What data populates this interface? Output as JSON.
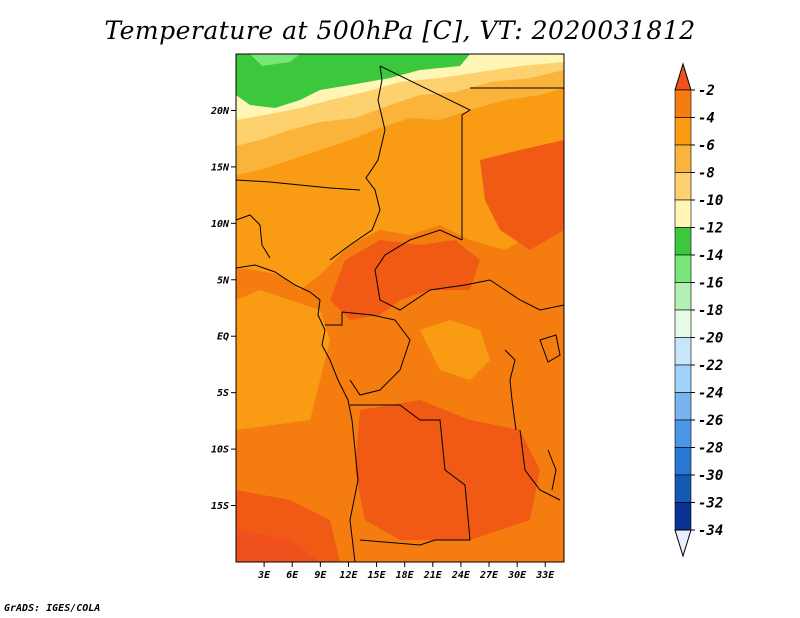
{
  "title": "Temperature at 500hPa [C], VT: 2020031812",
  "footer": "GrADS: IGES/COLA",
  "map": {
    "lon_range": [
      0,
      35
    ],
    "lat_range": [
      -20,
      25
    ],
    "lat_ticks": [
      {
        "value": 20,
        "label": "20N"
      },
      {
        "value": 15,
        "label": "15N"
      },
      {
        "value": 10,
        "label": "10N"
      },
      {
        "value": 5,
        "label": "5N"
      },
      {
        "value": 0,
        "label": "EQ"
      },
      {
        "value": -5,
        "label": "5S"
      },
      {
        "value": -10,
        "label": "10S"
      },
      {
        "value": -15,
        "label": "15S"
      }
    ],
    "lon_ticks": [
      {
        "value": 3,
        "label": "3E"
      },
      {
        "value": 6,
        "label": "6E"
      },
      {
        "value": 9,
        "label": "9E"
      },
      {
        "value": 12,
        "label": "12E"
      },
      {
        "value": 15,
        "label": "15E"
      },
      {
        "value": 18,
        "label": "18E"
      },
      {
        "value": 21,
        "label": "21E"
      },
      {
        "value": 24,
        "label": "24E"
      },
      {
        "value": 27,
        "label": "27E"
      },
      {
        "value": 30,
        "label": "30E"
      },
      {
        "value": 33,
        "label": "33E"
      }
    ]
  },
  "colorbar": {
    "labels": [
      "-2",
      "-4",
      "-6",
      "-8",
      "-10",
      "-12",
      "-14",
      "-16",
      "-18",
      "-20",
      "-22",
      "-24",
      "-26",
      "-28",
      "-30",
      "-32",
      "-34"
    ],
    "colors": [
      "#f0501e",
      "#f57d0f",
      "#fa9b14",
      "#fab43c",
      "#fdd26e",
      "#fff5b4",
      "#3cc83c",
      "#78e678",
      "#b4f0b4",
      "#e6fae6",
      "#c8e6fa",
      "#a0d2fa",
      "#78b4f0",
      "#4b96e6",
      "#2878d2",
      "#145ab4",
      "#0a3296",
      "#0a0a6e"
    ],
    "top_color": "#f0501e",
    "bottom_color": "#e6f0ff"
  },
  "field_colors": {
    "green": "#3cc83c",
    "light_green": "#78e678",
    "pale_yellow": "#fff5b4",
    "light_yellow": "#fdd26e",
    "light_orange": "#fab43c",
    "orange": "#fa9b14",
    "dark_orange": "#f57d0f",
    "red_orange": "#f05a14"
  }
}
